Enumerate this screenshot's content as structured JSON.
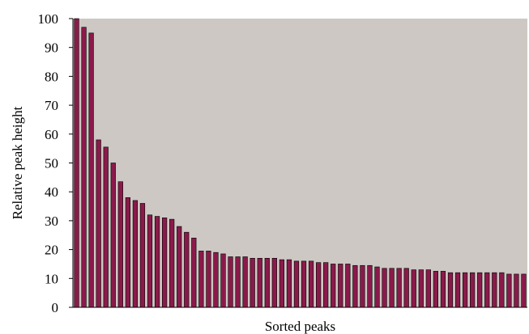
{
  "chart_data": {
    "type": "bar",
    "title": "",
    "xlabel": "Sorted peaks",
    "ylabel": "Relative peak height",
    "ylim": [
      0,
      100
    ],
    "yticks": [
      0,
      10,
      20,
      30,
      40,
      50,
      60,
      70,
      80,
      90,
      100
    ],
    "grid": false,
    "plot_background": "#cdc8c3",
    "bar_color": "#8b1a4b",
    "values": [
      100,
      97,
      95,
      58,
      55.5,
      50,
      43.5,
      38,
      37,
      36,
      32,
      31.5,
      31,
      30.5,
      28,
      26,
      24,
      19.5,
      19.5,
      19,
      18.5,
      17.5,
      17.5,
      17.5,
      17,
      17,
      17,
      17,
      16.5,
      16.5,
      16,
      16,
      16,
      15.5,
      15.5,
      15,
      15,
      15,
      14.5,
      14.5,
      14.5,
      14,
      13.5,
      13.5,
      13.5,
      13.5,
      13,
      13,
      13,
      12.5,
      12.5,
      12,
      12,
      12,
      12,
      12,
      12,
      12,
      12,
      11.5,
      11.5,
      11.5
    ]
  }
}
